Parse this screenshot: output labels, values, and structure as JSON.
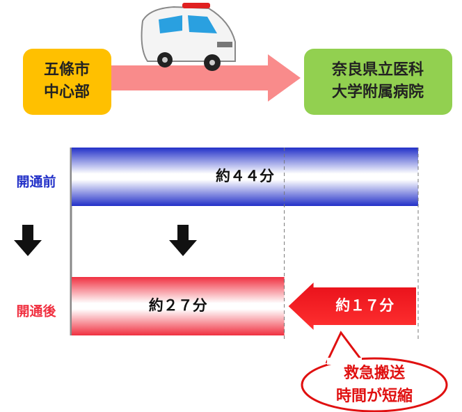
{
  "chart_data": {
    "type": "bar",
    "orientation": "horizontal",
    "origin": [
      "五條市",
      "中心部"
    ],
    "destination": [
      "奈良県立医科",
      "大学附属病院"
    ],
    "categories": [
      "開通前",
      "開通後"
    ],
    "values": [
      44,
      27
    ],
    "value_labels": [
      "約４４分",
      "約２７分"
    ],
    "colors": [
      "#2230c8",
      "#f03040"
    ],
    "difference": {
      "value": 17,
      "label": "約１７分"
    },
    "callout": [
      "救急搬送",
      "時間が短縮"
    ]
  }
}
